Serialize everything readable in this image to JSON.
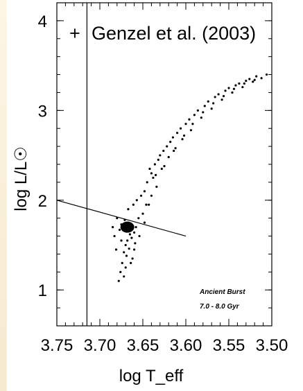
{
  "chart_data": {
    "type": "scatter",
    "title": "",
    "xlabel": "log T_eff",
    "ylabel": "log L/L☉",
    "xlim": [
      3.75,
      3.5
    ],
    "ylim": [
      0.6,
      4.2
    ],
    "x_inverted": true,
    "x_ticks": [
      {
        "value": 3.75,
        "label": "3.75"
      },
      {
        "value": 3.7,
        "label": "3.70"
      },
      {
        "value": 3.65,
        "label": "3.65"
      },
      {
        "value": 3.6,
        "label": "3.60"
      },
      {
        "value": 3.55,
        "label": "3.55"
      },
      {
        "value": 3.5,
        "label": "3.50"
      }
    ],
    "y_ticks": [
      {
        "value": 1,
        "label": "1"
      },
      {
        "value": 2,
        "label": "2"
      },
      {
        "value": 3,
        "label": "3"
      },
      {
        "value": 4,
        "label": "4"
      }
    ],
    "legend": {
      "symbol": "+",
      "label": "Genzel et al. (2003)",
      "position": "top"
    },
    "annotation": {
      "lines": [
        "Ancient Burst",
        "7.0 - 8.0 Gyr"
      ],
      "position": "bottom-right"
    },
    "vertical_line": {
      "x": 3.715
    },
    "reference_line": {
      "points": [
        [
          3.75,
          2.0
        ],
        [
          3.6,
          1.6
        ]
      ]
    },
    "series": [
      {
        "marker": "dot",
        "color": "#000000",
        "points": [
          [
            3.668,
            1.7
          ],
          [
            3.67,
            1.68
          ],
          [
            3.666,
            1.72
          ],
          [
            3.672,
            1.66
          ],
          [
            3.664,
            1.74
          ],
          [
            3.669,
            1.65
          ],
          [
            3.667,
            1.75
          ],
          [
            3.673,
            1.71
          ],
          [
            3.662,
            1.69
          ],
          [
            3.675,
            1.73
          ],
          [
            3.66,
            1.64
          ],
          [
            3.671,
            1.78
          ],
          [
            3.665,
            1.62
          ],
          [
            3.658,
            1.7
          ],
          [
            3.677,
            1.67
          ],
          [
            3.663,
            1.58
          ],
          [
            3.668,
            1.55
          ],
          [
            3.67,
            1.5
          ],
          [
            3.666,
            1.46
          ],
          [
            3.672,
            1.42
          ],
          [
            3.669,
            1.38
          ],
          [
            3.674,
            1.3
          ],
          [
            3.676,
            1.2
          ],
          [
            3.672,
            1.15
          ],
          [
            3.678,
            1.1
          ],
          [
            3.67,
            1.25
          ],
          [
            3.662,
            1.35
          ],
          [
            3.667,
            1.9
          ],
          [
            3.661,
            1.95
          ],
          [
            3.655,
            1.8
          ],
          [
            3.65,
            1.85
          ],
          [
            3.657,
            2.0
          ],
          [
            3.652,
            2.05
          ],
          [
            3.648,
            2.1
          ],
          [
            3.645,
            2.2
          ],
          [
            3.643,
            1.95
          ],
          [
            3.64,
            2.3
          ],
          [
            3.638,
            2.25
          ],
          [
            3.642,
            2.35
          ],
          [
            3.636,
            2.4
          ],
          [
            3.634,
            2.15
          ],
          [
            3.632,
            2.45
          ],
          [
            3.63,
            2.5
          ],
          [
            3.628,
            2.35
          ],
          [
            3.626,
            2.55
          ],
          [
            3.622,
            2.6
          ],
          [
            3.62,
            2.48
          ],
          [
            3.618,
            2.65
          ],
          [
            3.615,
            2.7
          ],
          [
            3.612,
            2.58
          ],
          [
            3.61,
            2.75
          ],
          [
            3.606,
            2.8
          ],
          [
            3.604,
            2.68
          ],
          [
            3.6,
            2.85
          ],
          [
            3.596,
            2.9
          ],
          [
            3.594,
            2.78
          ],
          [
            3.59,
            2.95
          ],
          [
            3.586,
            3.0
          ],
          [
            3.582,
            2.92
          ],
          [
            3.578,
            3.05
          ],
          [
            3.574,
            3.1
          ],
          [
            3.57,
            3.02
          ],
          [
            3.566,
            3.15
          ],
          [
            3.562,
            3.18
          ],
          [
            3.558,
            3.12
          ],
          [
            3.554,
            3.22
          ],
          [
            3.55,
            3.25
          ],
          [
            3.546,
            3.2
          ],
          [
            3.542,
            3.28
          ],
          [
            3.538,
            3.3
          ],
          [
            3.534,
            3.26
          ],
          [
            3.53,
            3.33
          ],
          [
            3.526,
            3.35
          ],
          [
            3.522,
            3.32
          ],
          [
            3.518,
            3.38
          ],
          [
            3.512,
            3.36
          ],
          [
            3.506,
            3.4
          ],
          [
            3.654,
            1.6
          ],
          [
            3.659,
            1.52
          ],
          [
            3.648,
            1.75
          ],
          [
            3.64,
            2.05
          ],
          [
            3.635,
            2.28
          ],
          [
            3.625,
            2.38
          ],
          [
            3.614,
            2.55
          ],
          [
            3.602,
            2.72
          ],
          [
            3.592,
            2.85
          ],
          [
            3.58,
            2.98
          ],
          [
            3.568,
            3.08
          ],
          [
            3.556,
            3.16
          ],
          [
            3.544,
            3.24
          ],
          [
            3.532,
            3.3
          ],
          [
            3.52,
            3.34
          ],
          [
            3.68,
            1.8
          ],
          [
            3.683,
            1.6
          ],
          [
            3.681,
            1.45
          ],
          [
            3.685,
            1.7
          ],
          [
            3.664,
            1.3
          ],
          [
            3.66,
            1.45
          ],
          [
            3.675,
            1.55
          ],
          [
            3.646,
            1.95
          ]
        ]
      }
    ]
  }
}
